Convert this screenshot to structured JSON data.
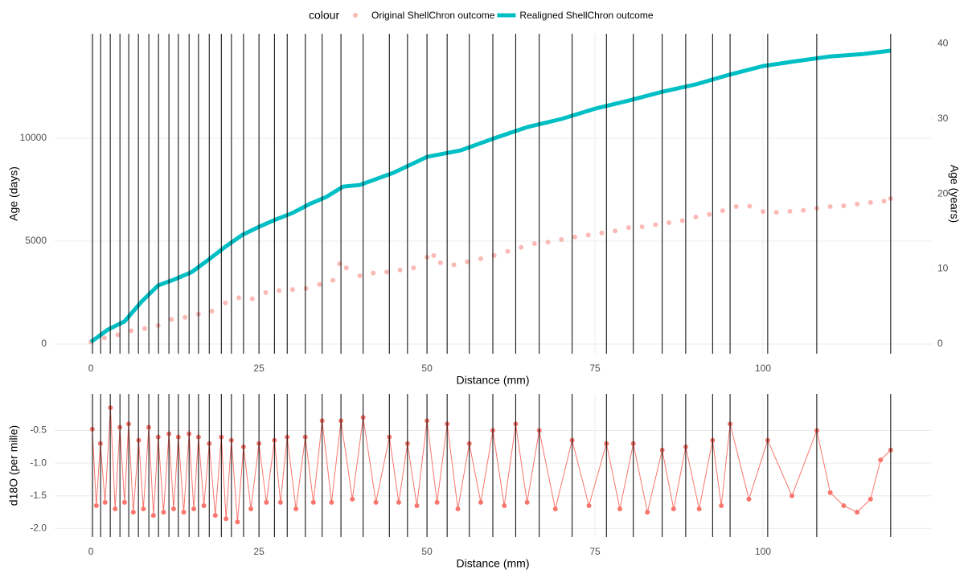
{
  "legend_title": "colour",
  "chart_data": [
    {
      "type": "scatter",
      "x_label": "Distance (mm)",
      "y_label": "Age (days)",
      "y2_label": "Age (years)",
      "xlim": [
        -5.4,
        125
      ],
      "xticks": [
        0,
        25,
        50,
        75,
        100
      ],
      "ylim": [
        -470,
        15080
      ],
      "yticks": [
        0,
        5000,
        10000
      ],
      "y2lim": [
        -1.29,
        41.31
      ],
      "y2ticks": [
        0,
        10,
        20,
        30,
        40
      ],
      "grid": true,
      "legend": "top",
      "vlines": [
        0.24,
        1.44,
        2.87,
        4.31,
        5.62,
        7.06,
        8.61,
        10.05,
        11.6,
        13.0,
        14.6,
        16.0,
        17.6,
        19.4,
        20.9,
        22.7,
        25.0,
        27.3,
        29.2,
        31.9,
        34.4,
        37.2,
        40.5,
        44.4,
        47.1,
        50.0,
        53.0,
        56.3,
        59.8,
        63.2,
        66.7,
        71.6,
        76.7,
        80.7,
        85.0,
        88.5,
        92.5,
        95.1,
        100.7,
        108.0,
        119.0
      ],
      "series": [
        {
          "name": "Original ShellChron outcome",
          "color": "#F8766D",
          "mark": "point",
          "x": [
            0,
            2,
            4,
            6,
            8,
            10,
            12,
            14,
            16,
            18,
            20,
            22,
            24,
            26,
            28,
            30,
            32,
            34,
            36,
            37,
            38,
            40,
            42,
            44,
            46,
            48,
            50,
            51,
            52,
            54,
            56,
            58,
            60,
            62,
            64,
            66,
            68,
            70,
            72,
            74,
            76,
            78,
            80,
            82,
            84,
            86,
            88,
            90,
            92,
            94,
            96,
            98,
            100,
            102,
            104,
            106,
            108,
            110,
            112,
            114,
            116,
            118,
            119
          ],
          "values": [
            100,
            300,
            450,
            650,
            750,
            900,
            1200,
            1300,
            1450,
            1600,
            2000,
            2250,
            2200,
            2500,
            2600,
            2650,
            2700,
            2900,
            3100,
            3900,
            3700,
            3320,
            3450,
            3500,
            3600,
            3700,
            4220,
            4300,
            3950,
            3850,
            4000,
            4150,
            4300,
            4500,
            4700,
            4880,
            4950,
            5080,
            5200,
            5300,
            5400,
            5500,
            5660,
            5700,
            5800,
            5900,
            6000,
            6170,
            6300,
            6480,
            6680,
            6700,
            6440,
            6400,
            6450,
            6500,
            6600,
            6680,
            6720,
            6800,
            6880,
            6950,
            7070
          ]
        },
        {
          "name": "Realigned ShellChron outcome",
          "color": "#00BFC4",
          "mark": "line",
          "x": [
            0,
            2.5,
            5,
            7.5,
            10,
            12.5,
            15,
            17.5,
            20,
            22.5,
            25,
            27.5,
            30,
            32.5,
            35,
            37.5,
            40,
            45,
            50,
            55,
            60,
            65,
            70,
            75,
            80,
            85,
            90,
            95,
            100,
            105,
            110,
            115,
            119
          ],
          "values": [
            100,
            700,
            1100,
            2050,
            2850,
            3150,
            3500,
            4100,
            4730,
            5300,
            5700,
            6050,
            6370,
            6800,
            7150,
            7650,
            7730,
            8320,
            9100,
            9410,
            10000,
            10550,
            10940,
            11440,
            11830,
            12260,
            12620,
            13090,
            13510,
            13750,
            13980,
            14100,
            14260
          ]
        }
      ]
    },
    {
      "type": "line",
      "x_label": "Distance (mm)",
      "y_label": "d18O (per mille)",
      "xlim": [
        -5.4,
        125
      ],
      "xticks": [
        0,
        25,
        50,
        75,
        100
      ],
      "ylim": [
        -2.13,
        0.06
      ],
      "yticks": [
        {
          "value": -2,
          "label": "-2.0"
        },
        -1.5,
        {
          "value": -1,
          "label": "-1.0"
        },
        -0.5
      ],
      "grid": true,
      "vlines": [
        0.24,
        1.44,
        2.87,
        4.31,
        5.62,
        7.06,
        8.61,
        10.05,
        11.6,
        13.0,
        14.6,
        16.0,
        17.6,
        19.4,
        20.9,
        22.7,
        25.0,
        27.3,
        29.2,
        31.9,
        34.4,
        37.2,
        40.5,
        44.4,
        47.1,
        50.0,
        53.0,
        56.3,
        59.8,
        63.2,
        66.7,
        71.6,
        76.7,
        80.7,
        85.0,
        88.5,
        92.5,
        95.1,
        100.7,
        108.0,
        119.0
      ],
      "series": [
        {
          "color": "#F8766D",
          "x": [
            0.2,
            0.8,
            1.4,
            2.1,
            2.9,
            3.6,
            4.3,
            5.0,
            5.6,
            6.3,
            7.1,
            7.8,
            8.6,
            9.3,
            10.0,
            10.8,
            11.6,
            12.3,
            13.0,
            13.8,
            14.6,
            15.3,
            16.0,
            16.8,
            17.6,
            18.5,
            19.4,
            20.1,
            20.9,
            21.8,
            22.7,
            23.8,
            25.0,
            26.1,
            27.3,
            28.2,
            29.2,
            30.5,
            31.9,
            33.1,
            34.4,
            35.8,
            37.2,
            38.9,
            40.5,
            42.4,
            44.4,
            45.8,
            47.1,
            48.5,
            50.0,
            51.5,
            53.0,
            54.6,
            56.3,
            58.0,
            59.8,
            61.5,
            63.2,
            64.9,
            66.7,
            69.1,
            71.6,
            74.1,
            76.7,
            78.7,
            80.7,
            82.8,
            85.0,
            86.7,
            88.5,
            90.5,
            92.5,
            93.8,
            95.1,
            97.9,
            100.7,
            104.3,
            108.0,
            110.0,
            112.0,
            114.0,
            116.0,
            117.5,
            119.0
          ],
          "values": [
            -0.48,
            -1.65,
            -0.7,
            -1.6,
            -0.15,
            -1.7,
            -0.45,
            -1.6,
            -0.4,
            -1.75,
            -0.65,
            -1.7,
            -0.45,
            -1.8,
            -0.6,
            -1.75,
            -0.55,
            -1.7,
            -0.6,
            -1.75,
            -0.55,
            -1.7,
            -0.6,
            -1.65,
            -0.7,
            -1.8,
            -0.6,
            -1.85,
            -0.65,
            -1.9,
            -0.75,
            -1.7,
            -0.7,
            -1.6,
            -0.65,
            -1.6,
            -0.6,
            -1.7,
            -0.6,
            -1.6,
            -0.35,
            -1.6,
            -0.35,
            -1.55,
            -0.3,
            -1.6,
            -0.6,
            -1.6,
            -0.7,
            -1.65,
            -0.35,
            -1.6,
            -0.4,
            -1.7,
            -0.7,
            -1.6,
            -0.5,
            -1.65,
            -0.4,
            -1.6,
            -0.5,
            -1.7,
            -0.65,
            -1.65,
            -0.7,
            -1.7,
            -0.7,
            -1.75,
            -0.8,
            -1.7,
            -0.75,
            -1.7,
            -0.65,
            -1.65,
            -0.4,
            -1.55,
            -0.65,
            -1.5,
            -0.5,
            -1.45,
            -1.65,
            -1.75,
            -1.55,
            -0.95,
            -0.8
          ]
        }
      ]
    }
  ]
}
